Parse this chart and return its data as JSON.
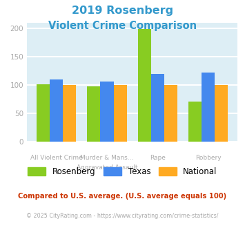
{
  "title_line1": "2019 Rosenberg",
  "title_line2": "Violent Crime Comparison",
  "title_color": "#3399cc",
  "rosenberg": [
    101,
    97,
    199,
    70
  ],
  "texas": [
    110,
    106,
    120,
    122
  ],
  "national": [
    100,
    100,
    100,
    100
  ],
  "rosenberg_color": "#88cc22",
  "texas_color": "#4488ee",
  "national_color": "#ffaa22",
  "ylim": [
    0,
    210
  ],
  "yticks": [
    0,
    50,
    100,
    150,
    200
  ],
  "bg_color": "#ddeef5",
  "grid_color": "#ffffff",
  "top_labels": [
    "",
    "Murder & Mans...",
    "",
    ""
  ],
  "bot_labels": [
    "All Violent Crime",
    "Aggravated Assault",
    "Rape",
    "Robbery"
  ],
  "legend_labels": [
    "Rosenberg",
    "Texas",
    "National"
  ],
  "footnote1": "Compared to U.S. average. (U.S. average equals 100)",
  "footnote2": "© 2025 CityRating.com - https://www.cityrating.com/crime-statistics/",
  "footnote1_color": "#cc3300",
  "footnote2_color": "#aaaaaa",
  "label_color": "#aaaaaa"
}
